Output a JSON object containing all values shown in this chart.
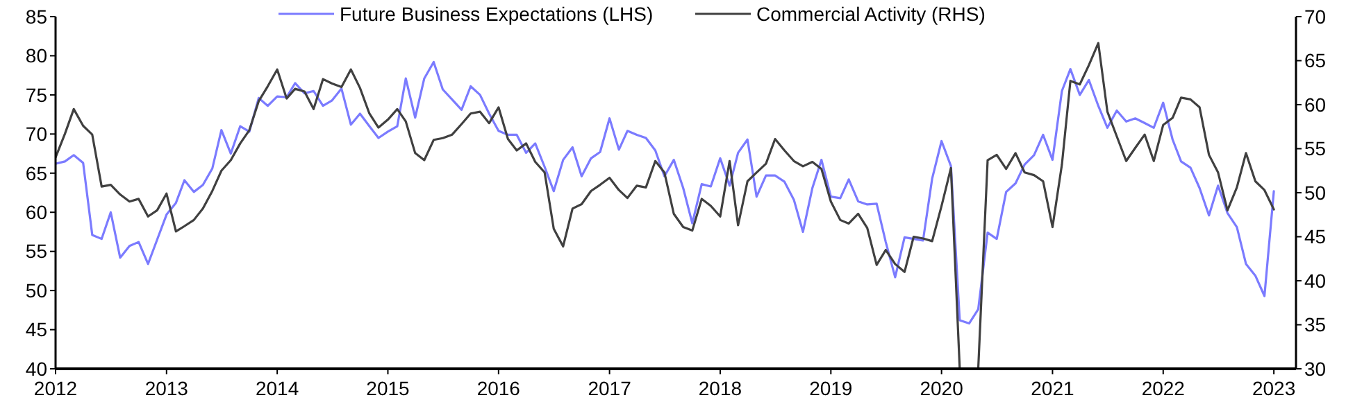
{
  "chart_data": {
    "type": "line",
    "legend": "top",
    "grid": false,
    "x": [
      "2012-01",
      "2012-02",
      "2012-03",
      "2012-04",
      "2012-05",
      "2012-06",
      "2012-07",
      "2012-08",
      "2012-09",
      "2012-10",
      "2012-11",
      "2012-12",
      "2013-01",
      "2013-02",
      "2013-03",
      "2013-04",
      "2013-05",
      "2013-06",
      "2013-07",
      "2013-08",
      "2013-09",
      "2013-10",
      "2013-11",
      "2013-12",
      "2014-01",
      "2014-02",
      "2014-03",
      "2014-04",
      "2014-05",
      "2014-06",
      "2014-07",
      "2014-08",
      "2014-09",
      "2014-10",
      "2014-11",
      "2014-12",
      "2015-01",
      "2015-02",
      "2015-03",
      "2015-04",
      "2015-05",
      "2015-06",
      "2015-07",
      "2015-08",
      "2015-09",
      "2015-10",
      "2015-11",
      "2015-12",
      "2016-01",
      "2016-02",
      "2016-03",
      "2016-04",
      "2016-05",
      "2016-06",
      "2016-07",
      "2016-08",
      "2016-09",
      "2016-10",
      "2016-11",
      "2016-12",
      "2017-01",
      "2017-02",
      "2017-03",
      "2017-04",
      "2017-05",
      "2017-06",
      "2017-07",
      "2017-08",
      "2017-09",
      "2017-10",
      "2017-11",
      "2017-12",
      "2018-01",
      "2018-02",
      "2018-03",
      "2018-04",
      "2018-05",
      "2018-06",
      "2018-07",
      "2018-08",
      "2018-09",
      "2018-10",
      "2018-11",
      "2018-12",
      "2019-01",
      "2019-02",
      "2019-03",
      "2019-04",
      "2019-05",
      "2019-06",
      "2019-07",
      "2019-08",
      "2019-09",
      "2019-10",
      "2019-11",
      "2019-12",
      "2020-01",
      "2020-02",
      "2020-03",
      "2020-04",
      "2020-05",
      "2020-06",
      "2020-07",
      "2020-08",
      "2020-09",
      "2020-10",
      "2020-11",
      "2020-12",
      "2021-01",
      "2021-02",
      "2021-03",
      "2021-04",
      "2021-05",
      "2021-06",
      "2021-07",
      "2021-08",
      "2021-09",
      "2021-10",
      "2021-11",
      "2021-12",
      "2022-01",
      "2022-02",
      "2022-03",
      "2022-04",
      "2022-05",
      "2022-06",
      "2022-07",
      "2022-08",
      "2022-09",
      "2022-10",
      "2022-11",
      "2022-12",
      "2023-01"
    ],
    "xlim": [
      "2012-01-01",
      "2023-03-15"
    ],
    "xticks": [
      "2012",
      "2013",
      "2014",
      "2015",
      "2016",
      "2017",
      "2018",
      "2019",
      "2020",
      "2021",
      "2022",
      "2023"
    ],
    "ylim": [
      40,
      85
    ],
    "yticks": [
      40,
      45,
      50,
      55,
      60,
      65,
      70,
      75,
      80,
      85
    ],
    "y2lim": [
      30,
      70
    ],
    "y2ticks": [
      30,
      35,
      40,
      45,
      50,
      55,
      60,
      65,
      70
    ],
    "series": [
      {
        "name": "Future Business Expectations (LHS)",
        "color": "#7b7bff",
        "values": [
          66.2,
          66.5,
          67.3,
          66.3,
          57.1,
          56.6,
          60.0,
          54.2,
          55.7,
          56.2,
          53.4,
          56.5,
          59.7,
          61.2,
          64.1,
          62.6,
          63.5,
          65.6,
          70.5,
          67.5,
          71.0,
          70.3,
          74.6,
          73.6,
          74.8,
          74.7,
          76.5,
          75.2,
          75.5,
          73.6,
          74.3,
          75.8,
          71.2,
          72.6,
          71.0,
          69.5,
          70.3,
          71.0,
          77.1,
          72.1,
          77.1,
          79.2,
          75.7,
          74.4,
          73.1,
          76.1,
          75.0,
          72.6,
          70.4,
          69.9,
          69.9,
          67.6,
          68.8,
          65.8,
          62.7,
          66.7,
          68.3,
          64.6,
          66.9,
          67.7,
          72.0,
          68.0,
          70.4,
          69.9,
          69.5,
          67.9,
          64.6,
          66.7,
          63.1,
          58.6,
          63.6,
          63.3,
          66.9,
          63.4,
          67.6,
          69.3,
          62.0,
          64.7,
          64.7,
          63.9,
          61.6,
          57.5,
          63.1,
          66.7,
          62.0,
          61.8,
          64.2,
          61.4,
          61.0,
          61.1,
          56.2,
          51.7,
          56.8,
          56.6,
          56.4,
          64.3,
          69.1,
          65.9,
          46.2,
          45.8,
          47.6,
          57.4,
          56.6,
          62.6,
          63.7,
          66.1,
          67.3,
          69.9,
          66.7,
          75.5,
          78.3,
          75.0,
          76.9,
          73.6,
          70.8,
          73.0,
          71.6,
          72.0,
          71.4,
          70.8,
          74.0,
          69.3,
          66.5,
          65.7,
          63.1,
          59.6,
          63.4,
          59.9,
          58.1,
          53.4,
          51.9,
          49.3,
          62.7
        ]
      },
      {
        "name": "Commercial Activity (RHS)",
        "color": "#404040",
        "axis": "y2",
        "values": [
          54.0,
          56.7,
          59.5,
          57.6,
          56.6,
          50.7,
          50.9,
          49.8,
          49.0,
          49.3,
          47.3,
          48.0,
          49.9,
          45.6,
          46.2,
          46.9,
          48.2,
          50.2,
          52.5,
          53.7,
          55.6,
          57.1,
          60.4,
          62.1,
          64.0,
          60.7,
          61.8,
          61.5,
          59.5,
          62.9,
          62.4,
          62.0,
          64.0,
          61.9,
          59.0,
          57.4,
          58.3,
          59.5,
          58.1,
          54.5,
          53.7,
          56.0,
          56.2,
          56.6,
          57.8,
          59.0,
          59.2,
          57.9,
          59.7,
          56.1,
          54.8,
          55.6,
          53.5,
          52.3,
          45.9,
          43.9,
          48.2,
          48.7,
          50.2,
          50.9,
          51.7,
          50.3,
          49.4,
          50.8,
          50.6,
          53.6,
          52.3,
          47.6,
          46.1,
          45.7,
          49.3,
          48.5,
          47.3,
          53.6,
          46.3,
          51.3,
          52.3,
          53.3,
          56.1,
          54.8,
          53.6,
          53.0,
          53.5,
          52.7,
          49.0,
          46.9,
          46.5,
          47.6,
          46.0,
          41.8,
          43.5,
          41.9,
          41.0,
          45.0,
          44.8,
          44.5,
          48.5,
          52.8,
          30,
          null,
          30,
          53.7,
          54.3,
          52.7,
          54.5,
          52.3,
          52.0,
          51.3,
          46.1,
          53.2,
          62.7,
          62.3,
          64.5,
          67.0,
          59.2,
          56.4,
          53.6,
          55.1,
          56.6,
          53.6,
          57.7,
          58.5,
          60.8,
          60.6,
          59.7,
          54.3,
          52.3,
          48.0,
          50.6,
          54.5,
          51.3,
          50.3,
          48.1
        ]
      }
    ]
  }
}
